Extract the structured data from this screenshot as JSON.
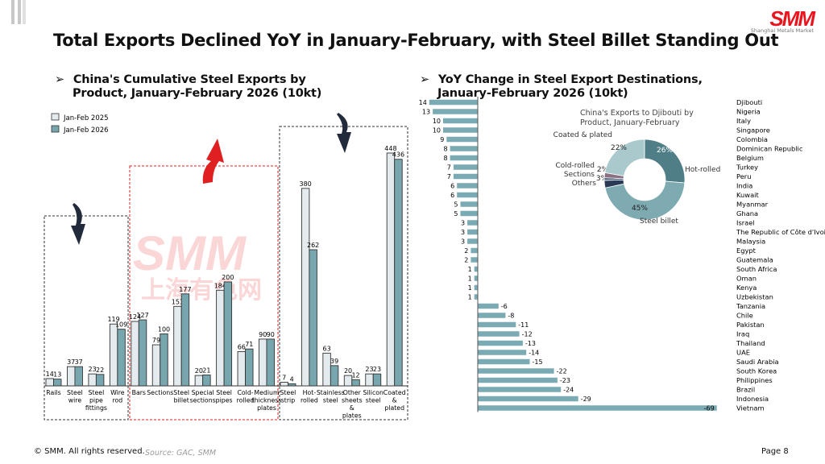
{
  "title": "Total Exports Declined YoY in January-February, with Steel Billet Standing Out",
  "logo": {
    "text": "SMM",
    "subtext": "Shanghai Metals Market"
  },
  "watermark": {
    "latin": "SMM",
    "chinese": "上海有色网"
  },
  "left_subtitle": [
    "China's Cumulative Steel Exports by",
    "Product, January-February 2026 (10kt)"
  ],
  "right_subtitle": [
    "YoY Change in Steel Export Destinations,",
    "January-February 2026 (10kt)"
  ],
  "bullet": "➢",
  "footer": {
    "copyright": "© SMM. All rights reserved.",
    "source": "Source: GAC, SMM",
    "page": "Page 8"
  },
  "colors": {
    "light": "#e3ebee",
    "teal": "#78a6af",
    "bar_right": "#7aaab3",
    "red": "#e02020",
    "navy": "#222b3c"
  },
  "chart_data": [
    {
      "type": "bar",
      "title": "China's Cumulative Steel Exports by Product, January-February 2026 (10kt)",
      "legend": [
        "Jan-Feb 2025",
        "Jan-Feb 2026"
      ],
      "legend_position": "top-left",
      "categories": [
        "Rails",
        "Steel wire",
        "Steel pipe fittings",
        "Wire rod",
        "Bars",
        "Sections",
        "Steel billet",
        "Special sections",
        "Steel pipes",
        "Cold-rolled",
        "Medium thickness plates",
        "Steel strip",
        "Hot-rolled",
        "Stainless steel",
        "Other sheets & plates",
        "Silicon steel",
        "Coated & plated"
      ],
      "category_lines": [
        [
          "Rails"
        ],
        [
          "Steel",
          "wire"
        ],
        [
          "Steel",
          "pipe",
          "fittings"
        ],
        [
          "Wire",
          "rod"
        ],
        [
          "Bars"
        ],
        [
          "Sections"
        ],
        [
          "Steel",
          "billet"
        ],
        [
          "Special",
          "sections"
        ],
        [
          "Steel",
          "pipes"
        ],
        [
          "Cold-",
          "rolled"
        ],
        [
          "Medium",
          "thickness",
          "plates"
        ],
        [
          "Steel",
          "strip"
        ],
        [
          "Hot-",
          "rolled"
        ],
        [
          "Stainless",
          "steel"
        ],
        [
          "Other",
          "sheets",
          "&",
          "plates"
        ],
        [
          "Silicon",
          "steel"
        ],
        [
          "Coated",
          "&",
          "plated"
        ]
      ],
      "series": [
        {
          "name": "Jan-Feb 2025",
          "values": [
            14,
            37,
            23,
            119,
            124,
            79,
            153,
            20,
            184,
            66,
            90,
            7,
            380,
            63,
            20,
            23,
            448
          ]
        },
        {
          "name": "Jan-Feb 2026",
          "values": [
            13,
            37,
            22,
            109,
            127,
            100,
            177,
            21,
            200,
            71,
            90,
            4,
            262,
            39,
            12,
            23,
            436
          ]
        }
      ],
      "groups": [
        {
          "label": "down",
          "from": 0,
          "to": 3
        },
        {
          "label": "up",
          "from": 4,
          "to": 10
        },
        {
          "label": "down",
          "from": 11,
          "to": 16
        }
      ]
    },
    {
      "type": "bar",
      "orientation": "horizontal",
      "title": "YoY Change in Steel Export Destinations, January-February 2026 (10kt)",
      "categories": [
        "Djibouti",
        "Nigeria",
        "Italy",
        "Singapore",
        "Colombia",
        "Dominican Republic",
        "Belgium",
        "Turkey",
        "Peru",
        "India",
        "Kuwait",
        "Myanmar",
        "Ghana",
        "Israel",
        "The Republic of Côte d'Ivoire",
        "Malaysia",
        "Egypt",
        "Guatemala",
        "South Africa",
        "Oman",
        "Kenya",
        "Uzbekistan",
        "Tanzania",
        "Chile",
        "Pakistan",
        "Iraq",
        "Thailand",
        "UAE",
        "Saudi Arabia",
        "South Korea",
        "Philippines",
        "Brazil",
        "Indonesia",
        "Vietnam"
      ],
      "values": [
        14,
        13,
        10,
        10,
        9,
        8,
        8,
        7,
        7,
        6,
        6,
        5,
        5,
        3,
        3,
        3,
        2,
        2,
        1,
        1,
        1,
        1,
        -6,
        -8,
        -11,
        -12,
        -13,
        -14,
        -15,
        -22,
        -23,
        -24,
        -29,
        -69
      ]
    },
    {
      "type": "pie",
      "donut": true,
      "title": "China's Exports to Djibouti by Product, January-February",
      "title_lines": [
        "China's Exports to Djibouti by",
        "Product, January-February"
      ],
      "slices": [
        {
          "label": "Hot-rolled",
          "value": 26,
          "text": "26%",
          "color": "#4f7e87"
        },
        {
          "label": "Steel billet",
          "value": 45,
          "text": "45%",
          "color": "#7eaab2"
        },
        {
          "label": "Others",
          "value": 3,
          "text": "3%",
          "color": "#2a3a56"
        },
        {
          "label": "Sections",
          "value": 1,
          "text": "1%",
          "color": "#3d5875"
        },
        {
          "label": "Cold-rolled",
          "value": 2,
          "text": "2%",
          "color": "#8a7080"
        },
        {
          "label": "Coated & plated",
          "value": 22,
          "text": "22%",
          "color": "#a9c9cd"
        }
      ]
    }
  ]
}
